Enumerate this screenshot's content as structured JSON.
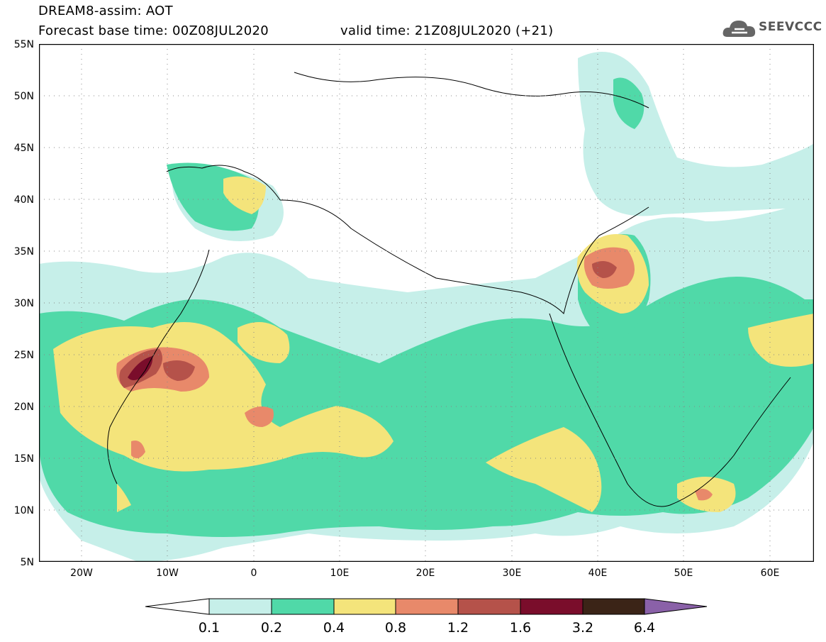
{
  "header": {
    "line1": "DREAM8-assim: AOT",
    "line2": "Forecast base time: 00Z08JUL2020",
    "valid": "valid time: 21Z08JUL2020 (+21)",
    "logo_text": "SEEVCCC"
  },
  "lat_labels": [
    "55N",
    "50N",
    "45N",
    "40N",
    "35N",
    "30N",
    "25N",
    "20N",
    "15N",
    "10N",
    "5N"
  ],
  "lon_labels": [
    "20W",
    "10W",
    "0",
    "10E",
    "20E",
    "30E",
    "40E",
    "50E",
    "60E"
  ],
  "colorbar": {
    "labels": [
      "0.1",
      "0.2",
      "0.4",
      "0.8",
      "1.2",
      "1.6",
      "3.2",
      "6.4"
    ],
    "colors": [
      "#ffffff",
      "#c6efe9",
      "#50d9a8",
      "#f4e47b",
      "#e8896a",
      "#b5524a",
      "#7a0d2b",
      "#3b2417",
      "#8a61a8"
    ]
  },
  "colors": {
    "c01": "#c6efe9",
    "c02": "#50d9a8",
    "c04": "#f4e47b",
    "c08": "#e8896a",
    "c12": "#b5524a",
    "c16": "#7a0d2b"
  }
}
